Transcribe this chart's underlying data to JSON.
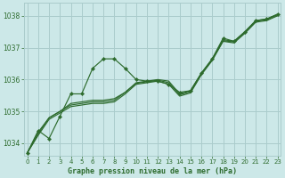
{
  "title": "Graphe pression niveau de la mer (hPa)",
  "bg_color": "#cce8e8",
  "grid_color": "#aacccc",
  "line_color": "#2d6b2d",
  "x_ticks": [
    0,
    1,
    2,
    3,
    4,
    5,
    6,
    7,
    8,
    9,
    10,
    11,
    12,
    13,
    14,
    15,
    16,
    17,
    18,
    19,
    20,
    21,
    22,
    23
  ],
  "y_ticks": [
    1034,
    1035,
    1036,
    1037,
    1038
  ],
  "ylim": [
    1033.6,
    1038.4
  ],
  "xlim": [
    -0.3,
    23.3
  ],
  "series": {
    "jagged_top": [
      1033.7,
      1034.4,
      1034.15,
      1034.85,
      1035.55,
      1035.55,
      1036.35,
      1036.65,
      1036.65,
      1036.35,
      1036.0,
      1035.95,
      1035.95,
      1035.85,
      1035.6,
      1035.65,
      1036.2,
      1036.65,
      1037.3,
      1037.2,
      1037.5,
      1037.85,
      1037.9,
      1038.05
    ],
    "smooth1": [
      1033.7,
      1034.35,
      1034.8,
      1035.0,
      1035.25,
      1035.3,
      1035.35,
      1035.35,
      1035.4,
      1035.6,
      1035.9,
      1035.95,
      1036.0,
      1035.95,
      1035.55,
      1035.65,
      1036.2,
      1036.65,
      1037.25,
      1037.2,
      1037.5,
      1037.85,
      1037.9,
      1038.05
    ],
    "smooth2": [
      1033.7,
      1034.3,
      1034.8,
      1035.0,
      1035.2,
      1035.25,
      1035.3,
      1035.3,
      1035.35,
      1035.6,
      1035.88,
      1035.93,
      1035.98,
      1035.9,
      1035.52,
      1035.62,
      1036.18,
      1036.62,
      1037.22,
      1037.18,
      1037.48,
      1037.83,
      1037.88,
      1038.03
    ],
    "smooth3": [
      1033.7,
      1034.25,
      1034.75,
      1034.95,
      1035.15,
      1035.2,
      1035.25,
      1035.25,
      1035.3,
      1035.55,
      1035.85,
      1035.9,
      1035.95,
      1035.85,
      1035.48,
      1035.58,
      1036.15,
      1036.6,
      1037.2,
      1037.15,
      1037.45,
      1037.8,
      1037.85,
      1038.0
    ]
  }
}
